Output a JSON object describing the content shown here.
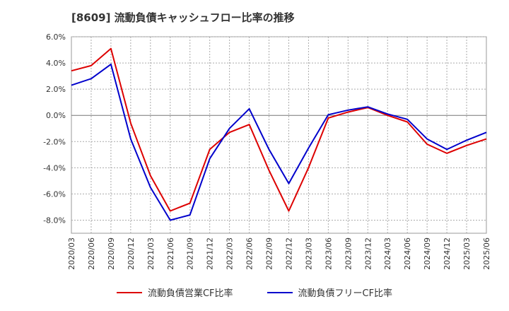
{
  "title": "[8609]  流動負債キャッシュフロー比率の推移",
  "chart_data": {
    "type": "line",
    "categories": [
      "2020/03",
      "2020/06",
      "2020/09",
      "2020/12",
      "2021/03",
      "2021/06",
      "2021/09",
      "2021/12",
      "2022/03",
      "2022/06",
      "2022/09",
      "2022/12",
      "2023/03",
      "2023/06",
      "2023/09",
      "2023/12",
      "2024/03",
      "2024/06",
      "2024/09",
      "2024/12",
      "2025/03",
      "2025/06"
    ],
    "ylim": [
      -9.0,
      6.0
    ],
    "yticks": [
      6.0,
      4.0,
      2.0,
      0.0,
      -2.0,
      -4.0,
      -6.0,
      -8.0
    ],
    "ytick_labels": [
      "6.0%",
      "4.0%",
      "2.0%",
      "0.0%",
      "-2.0%",
      "-4.0%",
      "-6.0%",
      "-8.0%"
    ],
    "grid": true,
    "legend_position": "bottom",
    "series": [
      {
        "name": "流動負債営業CF比率",
        "color": "#dd0000",
        "values": [
          3.4,
          3.8,
          5.1,
          -0.6,
          -4.6,
          -7.3,
          -6.7,
          -2.6,
          -1.3,
          -0.7,
          -4.2,
          -7.3,
          -4.0,
          -0.2,
          0.25,
          0.6,
          0.0,
          -0.5,
          -2.2,
          -2.9,
          -2.3,
          -1.8
        ]
      },
      {
        "name": "流動負債フリーCF比率",
        "color": "#0000cc",
        "values": [
          2.3,
          2.8,
          3.9,
          -1.8,
          -5.5,
          -8.0,
          -7.6,
          -3.3,
          -1.0,
          0.5,
          -2.6,
          -5.2,
          -2.5,
          0.05,
          0.4,
          0.65,
          0.1,
          -0.3,
          -1.8,
          -2.6,
          -1.9,
          -1.3
        ]
      }
    ]
  }
}
